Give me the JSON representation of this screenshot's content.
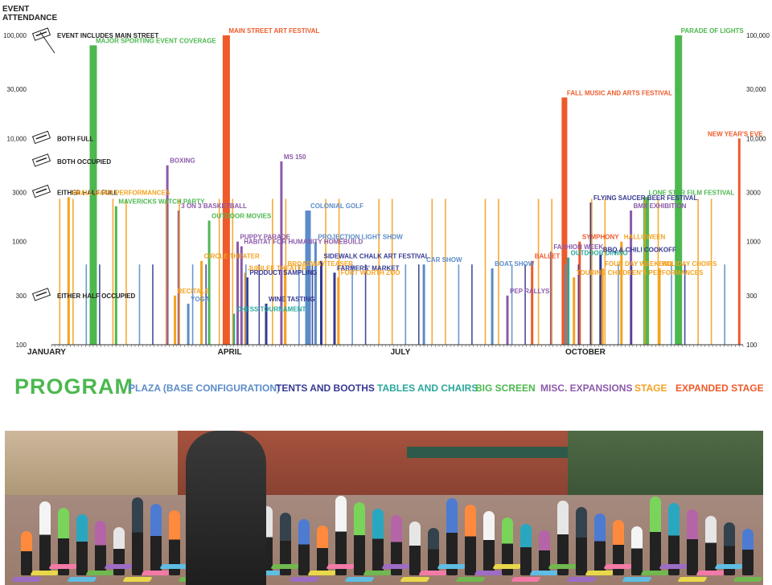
{
  "chart_data": {
    "type": "bar",
    "y_axis_title": [
      "EVENT",
      "ATTENDANCE"
    ],
    "y_scale": "log",
    "ylim": [
      100,
      100000
    ],
    "y_ticks": [
      {
        "label": "100,000",
        "value": 100000
      },
      {
        "label": "30,000",
        "value": 30000
      },
      {
        "label": "10,000",
        "value": 10000
      },
      {
        "label": "3000",
        "value": 3000
      },
      {
        "label": "1000",
        "value": 1000
      },
      {
        "label": "300",
        "value": 300
      },
      {
        "label": "100",
        "value": 100
      }
    ],
    "x_unit": "day of year",
    "xlim": [
      1,
      365
    ],
    "x_month_labels": [
      {
        "label": "JANUARY",
        "day": 1
      },
      {
        "label": "APRIL",
        "day": 91
      },
      {
        "label": "JULY",
        "day": 182
      },
      {
        "label": "OCTOBER",
        "day": 274
      }
    ],
    "occupancy_legend": [
      {
        "label": "EVENT INCLUDES MAIN STREET",
        "value": 100000
      },
      {
        "label": "BOTH FULL",
        "value": 10000
      },
      {
        "label": "BOTH OCCUPIED",
        "value": 6000
      },
      {
        "label": "EITHER HALF FULL",
        "value": 3000
      },
      {
        "label": "EITHER HALF OCCUPIED",
        "value": 300
      }
    ],
    "program_title": "PROGRAM",
    "categories": [
      {
        "name": "PLAZA (BASE CONFIGURATION)",
        "color": "#5b8cc9"
      },
      {
        "name": "TENTS AND BOOTHS",
        "color": "#363a92"
      },
      {
        "name": "TABLES AND CHAIRS",
        "color": "#28a89a"
      },
      {
        "name": "BIG SCREEN",
        "color": "#4cb84f"
      },
      {
        "name": "MISC. EXPANSIONS",
        "color": "#8c5aaa"
      },
      {
        "name": "STAGE",
        "color": "#f4a21f"
      },
      {
        "name": "EXPANDED STAGE",
        "color": "#ef5a2a"
      }
    ],
    "events": [
      {
        "name": "MAIN STREET ART FESTIVAL",
        "day": 93,
        "value": 100000,
        "category": "EXPANDED STAGE"
      },
      {
        "name": "MAJOR SPORTING EVENT COVERAGE",
        "day": 23,
        "value": 80000,
        "category": "BIG SCREEN"
      },
      {
        "name": "PARADE OF LIGHTS",
        "day": 331,
        "value": 100000,
        "category": "BIG SCREEN"
      },
      {
        "name": "FALL MUSIC AND ARTS FESTIVAL",
        "day": 271,
        "value": 25000,
        "category": "EXPANDED STAGE"
      },
      {
        "name": "NEW YEAR'S EVE",
        "day": 363,
        "value": 10000,
        "category": "EXPANDED STAGE"
      },
      {
        "name": "BOXING",
        "day": 62,
        "value": 5500,
        "category": "MISC. EXPANSIONS"
      },
      {
        "name": "MS 150",
        "day": 122,
        "value": 6000,
        "category": "MISC. EXPANSIONS"
      },
      {
        "name": "SMALL BAND PERFORMANCES",
        "day": 10,
        "value": 2700,
        "category": "STAGE"
      },
      {
        "name": "MAVERICKS WATCH PARTY",
        "day": 35,
        "value": 2200,
        "category": "BIG SCREEN"
      },
      {
        "name": "3 ON 3 BASKETBALL",
        "day": 68,
        "value": 2000,
        "category": "MISC. EXPANSIONS"
      },
      {
        "name": "OUTDOOR MOVIES",
        "day": 84,
        "value": 1600,
        "category": "BIG SCREEN"
      },
      {
        "name": "COLONIAL GOLF",
        "day": 136,
        "value": 2000,
        "category": "PLAZA (BASE CONFIGURATION)"
      },
      {
        "name": "PROJECTION LIGHT SHOW",
        "day": 140,
        "value": 1000,
        "category": "PLAZA (BASE CONFIGURATION)"
      },
      {
        "name": "PUPPY PARADE",
        "day": 99,
        "value": 1000,
        "category": "MISC. EXPANSIONS"
      },
      {
        "name": "HABITAT FOR HUMANITY HOMEBUILD",
        "day": 101,
        "value": 900,
        "category": "MISC. EXPANSIONS"
      },
      {
        "name": "CIRCLE THEATER",
        "day": 80,
        "value": 650,
        "category": "STAGE"
      },
      {
        "name": "BROADWAY TEASER",
        "day": 124,
        "value": 550,
        "category": "STAGE"
      },
      {
        "name": "JUBILEE THEATER",
        "day": 103,
        "value": 500,
        "category": "STAGE"
      },
      {
        "name": "SIDEWALK CHALK ART FESTIVAL",
        "day": 143,
        "value": 650,
        "category": "TENTS AND BOOTHS"
      },
      {
        "name": "FARMERS' MARKET",
        "day": 150,
        "value": 500,
        "category": "TENTS AND BOOTHS"
      },
      {
        "name": "PRODUCT SAMPLING",
        "day": 104,
        "value": 450,
        "category": "TENTS AND BOOTHS"
      },
      {
        "name": "FORT WORTH ZOO",
        "day": 152,
        "value": 450,
        "category": "STAGE"
      },
      {
        "name": "CAR SHOW",
        "day": 197,
        "value": 600,
        "category": "PLAZA (BASE CONFIGURATION)"
      },
      {
        "name": "BOAT SHOW",
        "day": 233,
        "value": 550,
        "category": "PLAZA (BASE CONFIGURATION)"
      },
      {
        "name": "RECITALS",
        "day": 66,
        "value": 300,
        "category": "STAGE"
      },
      {
        "name": "YOGA",
        "day": 73,
        "value": 250,
        "category": "PLAZA (BASE CONFIGURATION)"
      },
      {
        "name": "WINE TASTING",
        "day": 114,
        "value": 250,
        "category": "TENTS AND BOOTHS"
      },
      {
        "name": "CHESS TOURNAMENT",
        "day": 97,
        "value": 200,
        "category": "TABLES AND CHAIRS"
      },
      {
        "name": "PEP RALLYS",
        "day": 241,
        "value": 300,
        "category": "MISC. EXPANSIONS"
      },
      {
        "name": "FLYING SAUCER BEER FESTIVAL",
        "day": 285,
        "value": 2400,
        "category": "TENTS AND BOOTHS"
      },
      {
        "name": "BMX EXHIBITION",
        "day": 306,
        "value": 2000,
        "category": "MISC. EXPANSIONS"
      },
      {
        "name": "LONE STAR FILM FESTIVAL",
        "day": 314,
        "value": 2700,
        "category": "BIG SCREEN"
      },
      {
        "name": "HALLOWEEN",
        "day": 301,
        "value": 1000,
        "category": "STAGE"
      },
      {
        "name": "SYMPHONY",
        "day": 279,
        "value": 1000,
        "category": "EXPANDED STAGE"
      },
      {
        "name": "FASHION WEEK",
        "day": 264,
        "value": 800,
        "category": "MISC. EXPANSIONS"
      },
      {
        "name": "OUTDOOR DINING",
        "day": 273,
        "value": 700,
        "category": "TABLES AND CHAIRS"
      },
      {
        "name": "BALLET",
        "day": 254,
        "value": 650,
        "category": "EXPANDED STAGE"
      },
      {
        "name": "BBQ & CHILI COOKOFF",
        "day": 290,
        "value": 750,
        "category": "TENTS AND BOOTHS"
      },
      {
        "name": "FOUR DAY WEEKEND",
        "day": 291,
        "value": 550,
        "category": "STAGE"
      },
      {
        "name": "HOLIDAY CHOIRS",
        "day": 321,
        "value": 550,
        "category": "STAGE"
      },
      {
        "name": "TOURING CHILDREN'S PERFORMANCES",
        "day": 276,
        "value": 450,
        "category": "STAGE"
      }
    ]
  },
  "photo": {
    "description_icon": "yoga-class-photo"
  }
}
